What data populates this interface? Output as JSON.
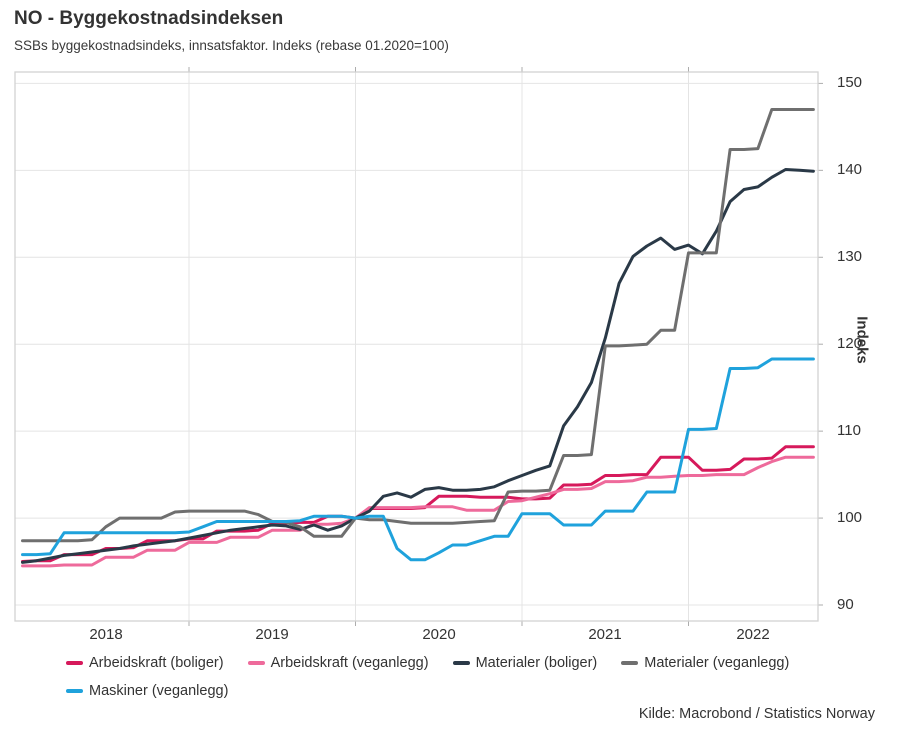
{
  "header": {
    "title": "NO - Byggekostnadsindeksen",
    "subtitle": "SSBs byggekostnadsindeks, innsatsfaktor. Indeks (rebase 01.2020=100)"
  },
  "source": "Kilde: Macrobond / Statistics Norway",
  "colors": {
    "grid": "#E4E4E4",
    "plot_border": "#D2D2D2",
    "tick": "#ADADAD",
    "text": "#333333"
  },
  "chart_data": {
    "type": "line",
    "title": "NO - Byggekostnadsindeksen",
    "subtitle": "SSBs byggekostnadsindeks, innsatsfaktor. Indeks (rebase 01.2020=100)",
    "frequency": "monthly",
    "x_start": "2018-01",
    "x_end": "2022-10",
    "x_tick_labels": [
      "2018",
      "2019",
      "2020",
      "2021",
      "2022"
    ],
    "y_axis": {
      "label": "Indeks",
      "side": "right",
      "ticks": [
        90,
        100,
        110,
        120,
        130,
        140,
        150
      ],
      "range": [
        88.2,
        151.3
      ]
    },
    "grid": true,
    "legend_position": "bottom",
    "series": [
      {
        "name": "Arbeidskraft (boliger)",
        "color": "#D6195B",
        "values": [
          95.0,
          95.1,
          95.1,
          95.8,
          95.8,
          95.8,
          96.5,
          96.5,
          96.6,
          97.4,
          97.4,
          97.4,
          97.6,
          97.6,
          98.5,
          98.5,
          98.5,
          98.6,
          99.4,
          99.4,
          99.5,
          99.5,
          100.2,
          100.2,
          100.0,
          101.1,
          101.1,
          101.1,
          101.1,
          101.2,
          102.5,
          102.5,
          102.5,
          102.4,
          102.4,
          102.4,
          102.2,
          102.2,
          102.3,
          103.8,
          103.8,
          103.9,
          104.9,
          104.9,
          105.0,
          105.0,
          107.0,
          107.0,
          107.0,
          105.5,
          105.5,
          105.6,
          106.8,
          106.8,
          106.9,
          108.2,
          108.2,
          108.2
        ]
      },
      {
        "name": "Arbeidskraft (veganlegg)",
        "color": "#EE6A9B",
        "values": [
          94.5,
          94.5,
          94.5,
          94.6,
          94.6,
          94.6,
          95.5,
          95.5,
          95.5,
          96.3,
          96.3,
          96.3,
          97.2,
          97.2,
          97.2,
          97.8,
          97.8,
          97.8,
          98.6,
          98.6,
          98.6,
          99.3,
          99.3,
          99.4,
          100.0,
          101.2,
          101.2,
          101.2,
          101.2,
          101.3,
          101.3,
          101.3,
          100.9,
          100.9,
          100.9,
          101.9,
          102.0,
          102.4,
          102.8,
          103.3,
          103.3,
          103.4,
          104.2,
          104.2,
          104.3,
          104.7,
          104.7,
          104.8,
          104.9,
          104.9,
          105.0,
          105.0,
          105.0,
          105.8,
          106.5,
          107.0,
          107.0,
          107.0
        ]
      },
      {
        "name": "Materialer (boliger)",
        "color": "#2A3947",
        "values": [
          94.9,
          95.1,
          95.4,
          95.7,
          95.9,
          96.1,
          96.3,
          96.5,
          96.8,
          97.0,
          97.2,
          97.4,
          97.7,
          98.0,
          98.3,
          98.6,
          98.8,
          99.0,
          99.2,
          99.1,
          98.7,
          99.2,
          98.6,
          99.1,
          100.0,
          100.8,
          102.5,
          102.9,
          102.4,
          103.3,
          103.5,
          103.2,
          103.2,
          103.3,
          103.6,
          104.3,
          104.9,
          105.5,
          106.0,
          110.6,
          112.8,
          115.6,
          120.7,
          127.0,
          130.1,
          131.3,
          132.2,
          130.9,
          131.4,
          130.4,
          133.0,
          136.4,
          137.8,
          138.1,
          139.2,
          140.1,
          140.0,
          139.9
        ]
      },
      {
        "name": "Materialer (veganlegg)",
        "color": "#6F6F6F",
        "values": [
          97.4,
          97.4,
          97.4,
          97.4,
          97.4,
          97.5,
          99.0,
          100.0,
          100.0,
          100.0,
          100.0,
          100.7,
          100.8,
          100.8,
          100.8,
          100.8,
          100.8,
          100.4,
          99.6,
          99.5,
          99.0,
          97.9,
          97.9,
          97.9,
          100.0,
          99.8,
          99.8,
          99.6,
          99.4,
          99.4,
          99.4,
          99.4,
          99.5,
          99.6,
          99.7,
          103.0,
          103.1,
          103.1,
          103.2,
          107.2,
          107.2,
          107.3,
          119.8,
          119.8,
          119.9,
          120.0,
          121.6,
          121.6,
          130.5,
          130.5,
          130.5,
          142.4,
          142.4,
          142.5,
          147.0,
          147.0,
          147.0,
          147.0
        ]
      },
      {
        "name": "Maskiner (veganlegg)",
        "color": "#1FA2DC",
        "values": [
          95.8,
          95.8,
          95.9,
          98.3,
          98.3,
          98.3,
          98.3,
          98.3,
          98.3,
          98.3,
          98.3,
          98.3,
          98.4,
          99.0,
          99.6,
          99.6,
          99.6,
          99.6,
          99.6,
          99.6,
          99.7,
          100.2,
          100.2,
          100.2,
          100.0,
          100.2,
          100.2,
          96.5,
          95.2,
          95.2,
          96.0,
          96.9,
          96.9,
          97.4,
          97.9,
          97.9,
          100.5,
          100.5,
          100.5,
          99.2,
          99.2,
          99.2,
          100.8,
          100.8,
          100.8,
          103.0,
          103.0,
          103.0,
          110.2,
          110.2,
          110.3,
          117.2,
          117.2,
          117.3,
          118.3,
          118.3,
          118.3,
          118.3
        ]
      }
    ]
  }
}
